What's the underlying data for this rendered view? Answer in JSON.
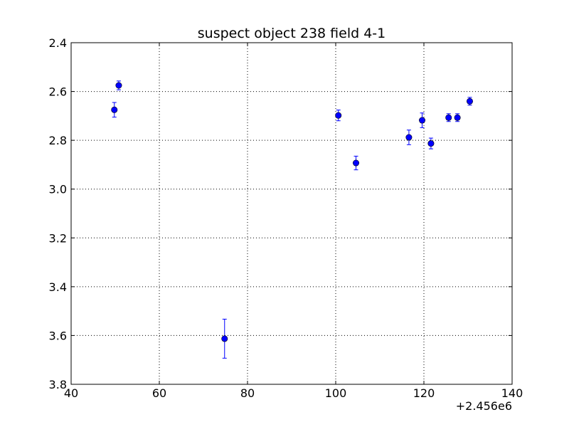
{
  "chart_data": {
    "type": "scatter",
    "title": "suspect object 238 field 4-1",
    "xlabel": "",
    "ylabel": "",
    "x_offset_label": "+2.456e6",
    "x_offset_value": 2456000,
    "xlim": [
      40,
      140
    ],
    "ylim": [
      2.4,
      3.8
    ],
    "y_inverted": true,
    "grid": true,
    "x_ticks": [
      40,
      60,
      80,
      100,
      120,
      140
    ],
    "x_tick_labels": [
      "40",
      "60",
      "80",
      "100",
      "120",
      "140"
    ],
    "y_ticks": [
      2.4,
      2.6,
      2.8,
      3.0,
      3.2,
      3.4,
      3.6,
      3.8
    ],
    "y_tick_labels": [
      "2.4",
      "2.6",
      "2.8",
      "3.0",
      "3.2",
      "3.4",
      "3.6",
      "3.8"
    ],
    "series": [
      {
        "color": "#0000ff",
        "points": [
          {
            "x": 49.8,
            "y": 2.675,
            "err": 0.03
          },
          {
            "x": 50.8,
            "y": 2.575,
            "err": 0.018
          },
          {
            "x": 74.8,
            "y": 3.613,
            "err": 0.08
          },
          {
            "x": 100.6,
            "y": 2.698,
            "err": 0.022
          },
          {
            "x": 104.6,
            "y": 2.893,
            "err": 0.028
          },
          {
            "x": 116.6,
            "y": 2.788,
            "err": 0.03
          },
          {
            "x": 119.6,
            "y": 2.718,
            "err": 0.03
          },
          {
            "x": 121.6,
            "y": 2.813,
            "err": 0.022
          },
          {
            "x": 125.6,
            "y": 2.707,
            "err": 0.016
          },
          {
            "x": 127.6,
            "y": 2.707,
            "err": 0.016
          },
          {
            "x": 130.4,
            "y": 2.64,
            "err": 0.016
          }
        ]
      }
    ]
  }
}
